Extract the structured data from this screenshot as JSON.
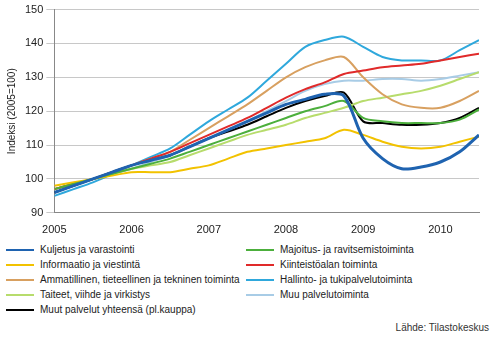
{
  "chart_data": {
    "type": "line",
    "y_label": "Indeksi (2005=100)",
    "source": "Lähde: Tilastokeskus",
    "x": [
      2005,
      2005.25,
      2005.5,
      2005.75,
      2006,
      2006.25,
      2006.5,
      2006.75,
      2007,
      2007.25,
      2007.5,
      2007.75,
      2008,
      2008.25,
      2008.5,
      2008.75,
      2009,
      2009.25,
      2009.5,
      2009.75,
      2010,
      2010.25,
      2010.5
    ],
    "xlim": [
      2005,
      2010.5
    ],
    "xticks": [
      2005,
      2006,
      2007,
      2008,
      2009,
      2010
    ],
    "ylim": [
      90,
      150
    ],
    "yticks": [
      90,
      100,
      110,
      120,
      130,
      140,
      150
    ],
    "grid": true,
    "legend": "bottom",
    "series": [
      {
        "name": "Kuljetus ja varastointi",
        "color": "#1f63b0",
        "values": [
          96,
          98,
          100,
          102,
          104,
          105.5,
          107,
          109.5,
          112,
          114.5,
          117,
          119.5,
          122,
          123.5,
          125,
          124.5,
          112,
          106,
          103,
          103.5,
          105,
          108,
          113
        ]
      },
      {
        "name": "Majoitus- ja ravitsemistoiminta",
        "color": "#4caf3c",
        "values": [
          97,
          98.5,
          100,
          101.5,
          103,
          104.5,
          106,
          108,
          110,
          112,
          114,
          116,
          118,
          120,
          121.5,
          123,
          118,
          117,
          116.5,
          116.5,
          116.5,
          117.5,
          120.5
        ]
      },
      {
        "name": "Informaatio ja viestintä",
        "color": "#f2c200",
        "values": [
          98,
          99,
          100,
          101,
          102,
          102,
          102,
          103,
          104,
          106,
          108,
          109,
          110,
          111,
          112,
          114.5,
          113,
          111,
          109.5,
          109,
          109.5,
          111,
          112.5
        ]
      },
      {
        "name": "Kiinteistöalan toiminta",
        "color": "#e02a2a",
        "values": [
          97,
          98.5,
          100,
          102,
          104,
          106,
          108,
          110.5,
          113,
          115.5,
          118,
          121,
          124,
          126.5,
          128.5,
          131,
          132,
          133,
          133.5,
          134,
          135,
          136,
          137
        ]
      },
      {
        "name": "Ammatillinen, tieteellinen ja tekninen toiminta",
        "color": "#d8a060",
        "values": [
          97,
          98.5,
          100,
          102,
          104,
          106,
          108,
          111.5,
          115,
          118.5,
          122,
          126,
          130,
          133,
          135,
          136,
          130,
          125,
          122,
          121,
          121,
          123,
          126
        ]
      },
      {
        "name": "Hallinto- ja tukipalvelutoiminta",
        "color": "#2fa8dc",
        "values": [
          95,
          97,
          99,
          101.5,
          104,
          106.5,
          109,
          113,
          117,
          120.5,
          124,
          129,
          134,
          139,
          141,
          142,
          139,
          136,
          135,
          135,
          135,
          138,
          141
        ]
      },
      {
        "name": "Taiteet, viihde ja virkistys",
        "color": "#b7dc6c",
        "values": [
          97,
          98.5,
          100,
          101.5,
          103,
          104,
          105,
          107,
          109,
          111,
          113,
          114.5,
          116,
          118,
          119.5,
          121,
          123,
          124,
          125,
          126,
          127.5,
          129.5,
          131.5
        ]
      },
      {
        "name": "Muu palvelutoiminta",
        "color": "#a8cce6",
        "values": [
          97,
          98.5,
          100,
          101.5,
          103,
          105,
          107,
          109.5,
          112,
          114.5,
          117,
          120,
          123,
          126,
          128,
          129,
          129,
          129.5,
          129.5,
          129,
          129.5,
          130.5,
          131.5
        ]
      },
      {
        "name": "Muut palvelut yhteensä (pl.kauppa)",
        "color": "#000000",
        "values": [
          96,
          98,
          100,
          102,
          104,
          105.5,
          107,
          109.5,
          112,
          114,
          116,
          118.5,
          121,
          123,
          124.5,
          125.5,
          117,
          116.5,
          116,
          116,
          116.5,
          118,
          121
        ]
      }
    ]
  }
}
